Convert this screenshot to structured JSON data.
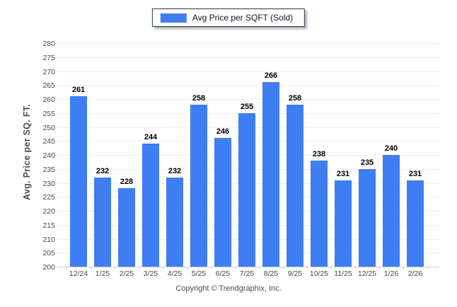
{
  "legend": {
    "label": "Avg Price per SQFT (Sold)"
  },
  "chart_data": {
    "type": "bar",
    "title": "",
    "series_name": "Avg Price per SQFT (Sold)",
    "categories": [
      "12/24",
      "1/25",
      "2/25",
      "3/25",
      "4/25",
      "5/25",
      "6/25",
      "7/25",
      "8/25",
      "9/25",
      "10/25",
      "11/25",
      "12/25",
      "1/26",
      "2/26"
    ],
    "values": [
      261,
      232,
      228,
      244,
      232,
      258,
      246,
      255,
      266,
      258,
      238,
      231,
      235,
      240,
      231
    ],
    "xlabel": "",
    "ylabel": "Avg. Price per SQ. FT.",
    "ylim": [
      200,
      280
    ],
    "ytick_step": 5,
    "grid": "horizontal",
    "legend_position": "top-center",
    "bar_color": "#3e7ef2",
    "data_label_color": "#000000",
    "gridline_color": "#ededed",
    "axis_line_color": "#cfcfcf",
    "tick_label_color": "#3e4a57"
  },
  "footer": {
    "copyright": "Copyright © Trendgraphix, Inc."
  }
}
